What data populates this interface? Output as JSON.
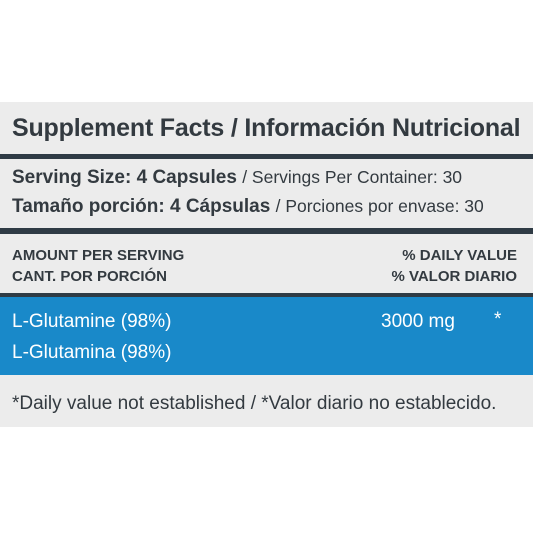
{
  "title": "Supplement Facts / Información Nutricional",
  "serving": {
    "size_en_label": "Serving Size: 4 Capsules",
    "per_container_en": "/ Servings Per Container: 30",
    "size_es_label": "Tamaño porción: 4 Cápsulas",
    "per_container_es": "/ Porciones por envase: 30"
  },
  "header": {
    "amount_en": "AMOUNT PER SERVING",
    "amount_es": "CANT. POR PORCIÓN",
    "dv_en": "% DAILY VALUE",
    "dv_es": "% VALOR DIARIO"
  },
  "ingredients": [
    {
      "name_en": "L-Glutamine (98%)",
      "name_es": "L-Glutamina (98%)",
      "amount": "3000 mg",
      "daily_value": "*"
    }
  ],
  "footnote": "*Daily value not established / *Valor diario no establecido.",
  "colors": {
    "panel_bg": "#ececec",
    "rule": "#2f3b45",
    "highlight_row": "#1989c9",
    "text": "#333a40"
  }
}
